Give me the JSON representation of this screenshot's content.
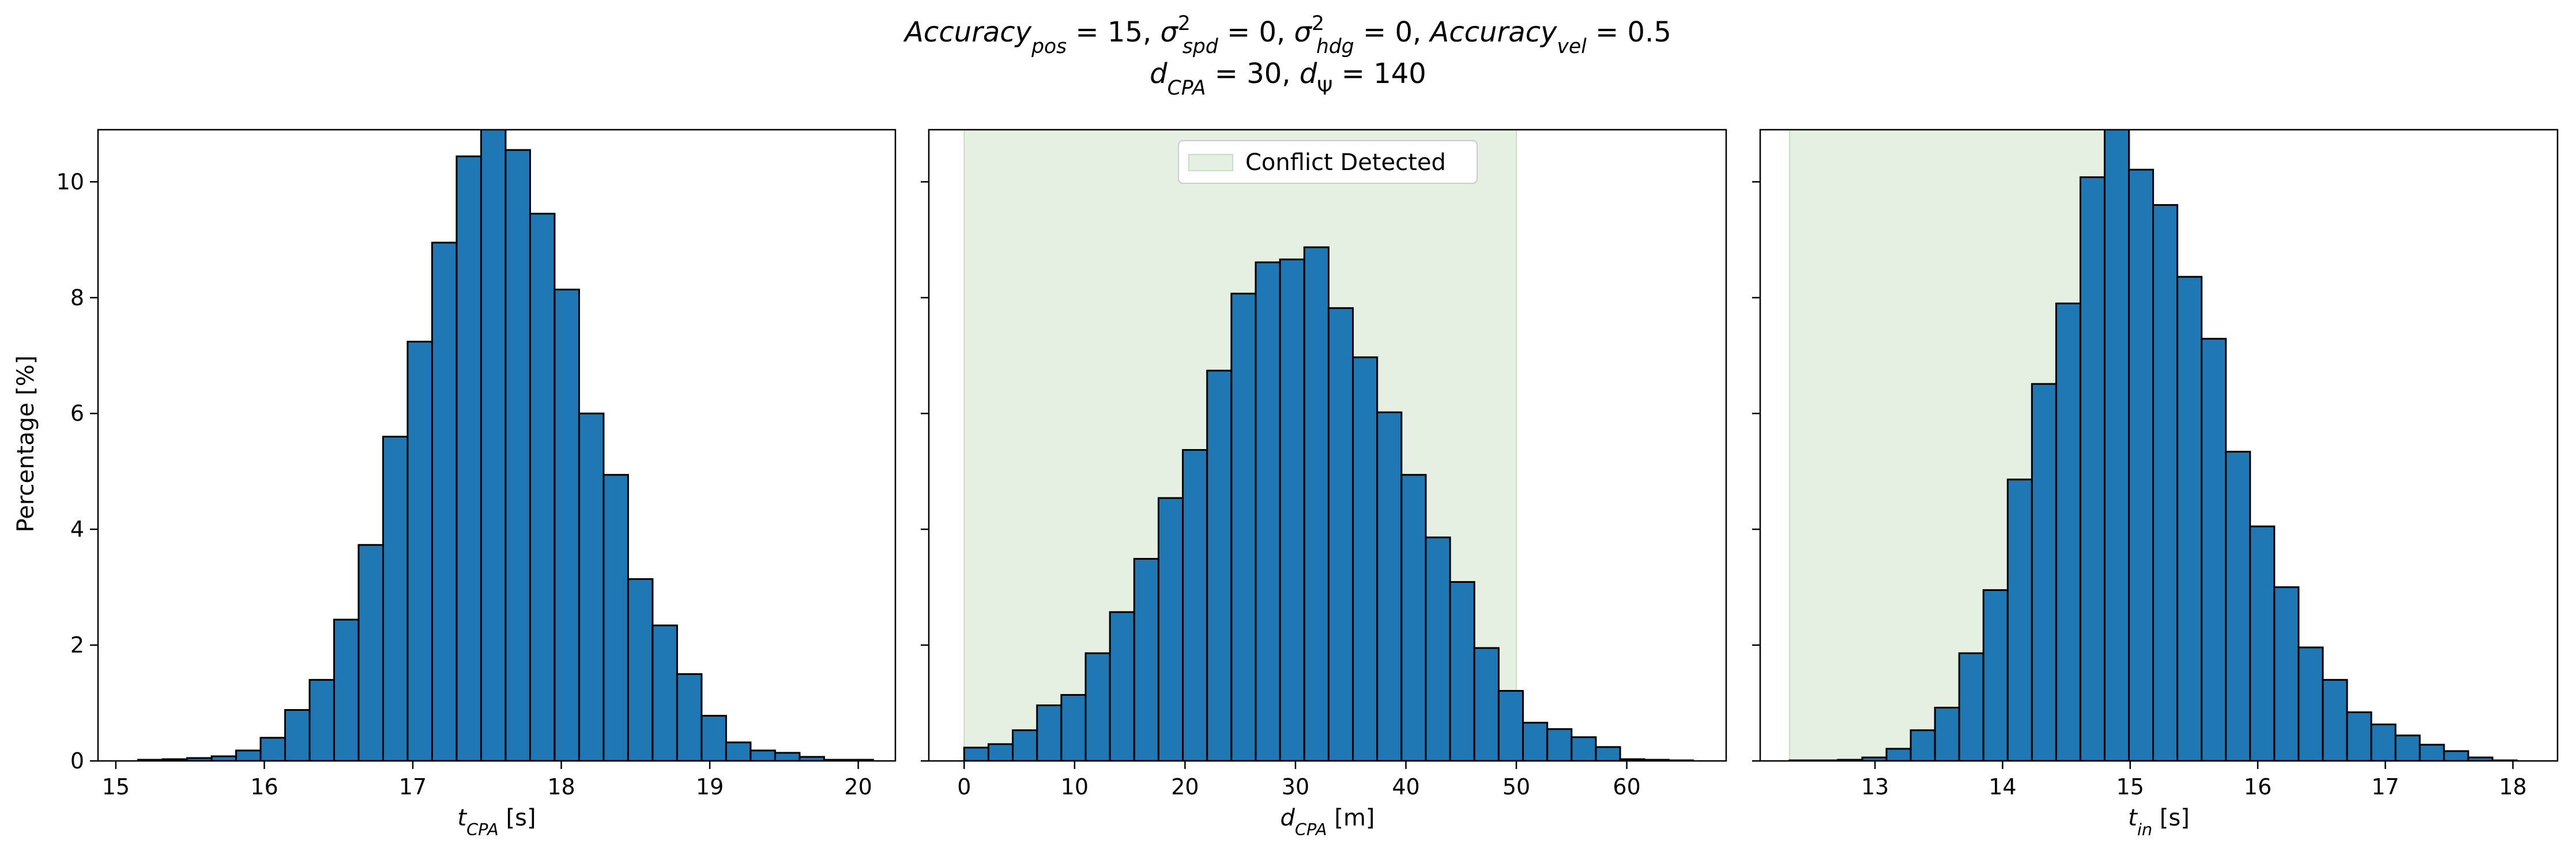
{
  "title": {
    "line1": [
      {
        "text": "Accuracy",
        "style": "it"
      },
      {
        "text": "pos",
        "style": "it-sub"
      },
      {
        "text": " = 15, ",
        "style": "normal"
      },
      {
        "text": "σ",
        "style": "it"
      },
      {
        "text": "2",
        "style": "sup"
      },
      {
        "text": "spd",
        "style": "it-sub-back"
      },
      {
        "text": " = 0, ",
        "style": "normal"
      },
      {
        "text": "σ",
        "style": "it"
      },
      {
        "text": "2",
        "style": "sup"
      },
      {
        "text": "hdg",
        "style": "it-sub-back"
      },
      {
        "text": " = 0, ",
        "style": "normal"
      },
      {
        "text": "Accuracy",
        "style": "it"
      },
      {
        "text": "vel",
        "style": "it-sub"
      },
      {
        "text": " = 0.5",
        "style": "normal"
      }
    ],
    "line2": [
      {
        "text": "d",
        "style": "it"
      },
      {
        "text": "CPA",
        "style": "it-sub"
      },
      {
        "text": " = 30, ",
        "style": "normal"
      },
      {
        "text": "d",
        "style": "it"
      },
      {
        "text": "Ψ",
        "style": "sub"
      },
      {
        "text": " = 140",
        "style": "normal"
      }
    ]
  },
  "shared_ylabel": "Percentage [%]",
  "colors": {
    "bar_fill": "#1f77b4",
    "bar_edge": "#000000",
    "conflict_fill": "#e5f0e3",
    "conflict_edge": "#c5e0c1"
  },
  "legend": {
    "label": "Conflict Detected",
    "location": "upper center of middle panel"
  },
  "chart_data": [
    {
      "type": "bar",
      "name": "t_cpa_histogram",
      "xlabel": [
        {
          "text": "t",
          "style": "it"
        },
        {
          "text": "CPA",
          "style": "it-sub"
        },
        {
          "text": " [s]",
          "style": "normal"
        }
      ],
      "ylabel": "Percentage [%]",
      "xlim": [
        14.88,
        20.25
      ],
      "ylim": [
        0,
        10.9
      ],
      "xticks": [
        15,
        16,
        17,
        18,
        19,
        20
      ],
      "yticks": [
        0,
        2,
        4,
        6,
        8,
        10
      ],
      "show_ytick_labels": true,
      "bin_start": 15.15,
      "bin_width": 0.165,
      "values": [
        0.02,
        0.03,
        0.05,
        0.08,
        0.18,
        0.4,
        0.88,
        1.4,
        2.44,
        3.73,
        5.6,
        7.24,
        8.95,
        10.44,
        11.0,
        10.55,
        9.45,
        8.14,
        6.0,
        4.94,
        3.14,
        2.34,
        1.5,
        0.78,
        0.32,
        0.18,
        0.14,
        0.07,
        0.02,
        0.02
      ],
      "shaded_region": null
    },
    {
      "type": "bar",
      "name": "d_cpa_histogram",
      "xlabel": [
        {
          "text": "d",
          "style": "it"
        },
        {
          "text": "CPA",
          "style": "it-sub"
        },
        {
          "text": " [m]",
          "style": "normal"
        }
      ],
      "xlim": [
        -3.2,
        69.0
      ],
      "ylim": [
        0,
        10.9
      ],
      "xticks": [
        0,
        10,
        20,
        30,
        40,
        50,
        60
      ],
      "yticks": [
        0,
        2,
        4,
        6,
        8,
        10
      ],
      "show_ytick_labels": false,
      "bin_start": 0.0,
      "bin_width": 2.2,
      "values": [
        0.23,
        0.29,
        0.53,
        0.96,
        1.14,
        1.86,
        2.57,
        3.49,
        4.54,
        5.37,
        6.74,
        8.07,
        8.61,
        8.66,
        8.87,
        7.82,
        6.97,
        6.02,
        4.94,
        3.86,
        3.09,
        1.95,
        1.21,
        0.66,
        0.55,
        0.41,
        0.24,
        0.03,
        0.02,
        0.01
      ],
      "shaded_region": [
        0,
        50
      ]
    },
    {
      "type": "bar",
      "name": "t_in_histogram",
      "xlabel": [
        {
          "text": "t",
          "style": "it"
        },
        {
          "text": "in",
          "style": "it-sub"
        },
        {
          "text": " [s]",
          "style": "normal"
        }
      ],
      "xlim": [
        12.1,
        18.35
      ],
      "ylim": [
        0,
        10.9
      ],
      "xticks": [
        13,
        14,
        15,
        16,
        17,
        18
      ],
      "yticks": [
        0,
        2,
        4,
        6,
        8,
        10
      ],
      "show_ytick_labels": false,
      "bin_start": 12.33,
      "bin_width": 0.19,
      "values": [
        0.01,
        0.01,
        0.02,
        0.06,
        0.21,
        0.53,
        0.92,
        1.86,
        2.95,
        4.86,
        6.51,
        7.9,
        10.08,
        11.0,
        10.21,
        9.6,
        8.36,
        7.29,
        5.34,
        4.05,
        3.0,
        1.96,
        1.4,
        0.84,
        0.63,
        0.44,
        0.28,
        0.17,
        0.06,
        0.01
      ],
      "shaded_region": [
        12.33,
        15.0
      ]
    }
  ]
}
